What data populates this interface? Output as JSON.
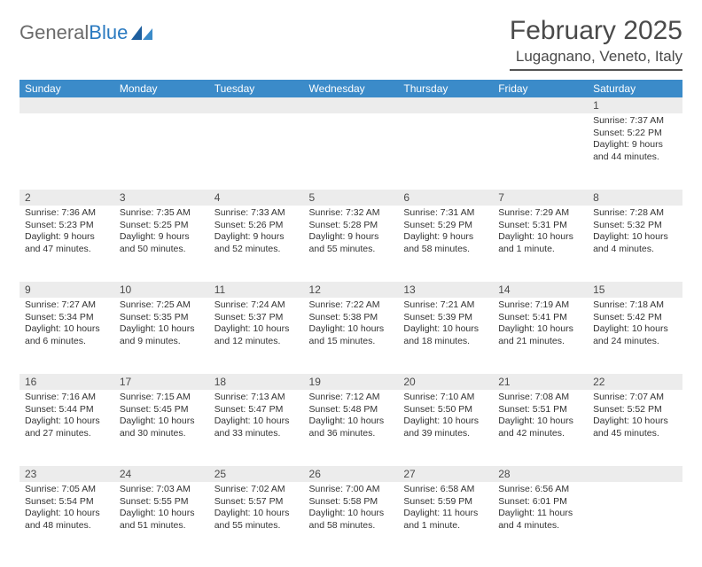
{
  "logo": {
    "word1": "General",
    "word2": "Blue"
  },
  "title": "February 2025",
  "location": "Lugagnano, Veneto, Italy",
  "colors": {
    "header_bg": "#3b8bc9",
    "header_text": "#ffffff",
    "daynum_bg": "#ececec",
    "text": "#333333",
    "logo_gray": "#6b6b6b",
    "logo_blue": "#2a7ac0"
  },
  "weekdays": [
    "Sunday",
    "Monday",
    "Tuesday",
    "Wednesday",
    "Thursday",
    "Friday",
    "Saturday"
  ],
  "weeks": [
    [
      {
        "n": "",
        "sunrise": "",
        "sunset": "",
        "daylight": ""
      },
      {
        "n": "",
        "sunrise": "",
        "sunset": "",
        "daylight": ""
      },
      {
        "n": "",
        "sunrise": "",
        "sunset": "",
        "daylight": ""
      },
      {
        "n": "",
        "sunrise": "",
        "sunset": "",
        "daylight": ""
      },
      {
        "n": "",
        "sunrise": "",
        "sunset": "",
        "daylight": ""
      },
      {
        "n": "",
        "sunrise": "",
        "sunset": "",
        "daylight": ""
      },
      {
        "n": "1",
        "sunrise": "Sunrise: 7:37 AM",
        "sunset": "Sunset: 5:22 PM",
        "daylight": "Daylight: 9 hours and 44 minutes."
      }
    ],
    [
      {
        "n": "2",
        "sunrise": "Sunrise: 7:36 AM",
        "sunset": "Sunset: 5:23 PM",
        "daylight": "Daylight: 9 hours and 47 minutes."
      },
      {
        "n": "3",
        "sunrise": "Sunrise: 7:35 AM",
        "sunset": "Sunset: 5:25 PM",
        "daylight": "Daylight: 9 hours and 50 minutes."
      },
      {
        "n": "4",
        "sunrise": "Sunrise: 7:33 AM",
        "sunset": "Sunset: 5:26 PM",
        "daylight": "Daylight: 9 hours and 52 minutes."
      },
      {
        "n": "5",
        "sunrise": "Sunrise: 7:32 AM",
        "sunset": "Sunset: 5:28 PM",
        "daylight": "Daylight: 9 hours and 55 minutes."
      },
      {
        "n": "6",
        "sunrise": "Sunrise: 7:31 AM",
        "sunset": "Sunset: 5:29 PM",
        "daylight": "Daylight: 9 hours and 58 minutes."
      },
      {
        "n": "7",
        "sunrise": "Sunrise: 7:29 AM",
        "sunset": "Sunset: 5:31 PM",
        "daylight": "Daylight: 10 hours and 1 minute."
      },
      {
        "n": "8",
        "sunrise": "Sunrise: 7:28 AM",
        "sunset": "Sunset: 5:32 PM",
        "daylight": "Daylight: 10 hours and 4 minutes."
      }
    ],
    [
      {
        "n": "9",
        "sunrise": "Sunrise: 7:27 AM",
        "sunset": "Sunset: 5:34 PM",
        "daylight": "Daylight: 10 hours and 6 minutes."
      },
      {
        "n": "10",
        "sunrise": "Sunrise: 7:25 AM",
        "sunset": "Sunset: 5:35 PM",
        "daylight": "Daylight: 10 hours and 9 minutes."
      },
      {
        "n": "11",
        "sunrise": "Sunrise: 7:24 AM",
        "sunset": "Sunset: 5:37 PM",
        "daylight": "Daylight: 10 hours and 12 minutes."
      },
      {
        "n": "12",
        "sunrise": "Sunrise: 7:22 AM",
        "sunset": "Sunset: 5:38 PM",
        "daylight": "Daylight: 10 hours and 15 minutes."
      },
      {
        "n": "13",
        "sunrise": "Sunrise: 7:21 AM",
        "sunset": "Sunset: 5:39 PM",
        "daylight": "Daylight: 10 hours and 18 minutes."
      },
      {
        "n": "14",
        "sunrise": "Sunrise: 7:19 AM",
        "sunset": "Sunset: 5:41 PM",
        "daylight": "Daylight: 10 hours and 21 minutes."
      },
      {
        "n": "15",
        "sunrise": "Sunrise: 7:18 AM",
        "sunset": "Sunset: 5:42 PM",
        "daylight": "Daylight: 10 hours and 24 minutes."
      }
    ],
    [
      {
        "n": "16",
        "sunrise": "Sunrise: 7:16 AM",
        "sunset": "Sunset: 5:44 PM",
        "daylight": "Daylight: 10 hours and 27 minutes."
      },
      {
        "n": "17",
        "sunrise": "Sunrise: 7:15 AM",
        "sunset": "Sunset: 5:45 PM",
        "daylight": "Daylight: 10 hours and 30 minutes."
      },
      {
        "n": "18",
        "sunrise": "Sunrise: 7:13 AM",
        "sunset": "Sunset: 5:47 PM",
        "daylight": "Daylight: 10 hours and 33 minutes."
      },
      {
        "n": "19",
        "sunrise": "Sunrise: 7:12 AM",
        "sunset": "Sunset: 5:48 PM",
        "daylight": "Daylight: 10 hours and 36 minutes."
      },
      {
        "n": "20",
        "sunrise": "Sunrise: 7:10 AM",
        "sunset": "Sunset: 5:50 PM",
        "daylight": "Daylight: 10 hours and 39 minutes."
      },
      {
        "n": "21",
        "sunrise": "Sunrise: 7:08 AM",
        "sunset": "Sunset: 5:51 PM",
        "daylight": "Daylight: 10 hours and 42 minutes."
      },
      {
        "n": "22",
        "sunrise": "Sunrise: 7:07 AM",
        "sunset": "Sunset: 5:52 PM",
        "daylight": "Daylight: 10 hours and 45 minutes."
      }
    ],
    [
      {
        "n": "23",
        "sunrise": "Sunrise: 7:05 AM",
        "sunset": "Sunset: 5:54 PM",
        "daylight": "Daylight: 10 hours and 48 minutes."
      },
      {
        "n": "24",
        "sunrise": "Sunrise: 7:03 AM",
        "sunset": "Sunset: 5:55 PM",
        "daylight": "Daylight: 10 hours and 51 minutes."
      },
      {
        "n": "25",
        "sunrise": "Sunrise: 7:02 AM",
        "sunset": "Sunset: 5:57 PM",
        "daylight": "Daylight: 10 hours and 55 minutes."
      },
      {
        "n": "26",
        "sunrise": "Sunrise: 7:00 AM",
        "sunset": "Sunset: 5:58 PM",
        "daylight": "Daylight: 10 hours and 58 minutes."
      },
      {
        "n": "27",
        "sunrise": "Sunrise: 6:58 AM",
        "sunset": "Sunset: 5:59 PM",
        "daylight": "Daylight: 11 hours and 1 minute."
      },
      {
        "n": "28",
        "sunrise": "Sunrise: 6:56 AM",
        "sunset": "Sunset: 6:01 PM",
        "daylight": "Daylight: 11 hours and 4 minutes."
      },
      {
        "n": "",
        "sunrise": "",
        "sunset": "",
        "daylight": ""
      }
    ]
  ]
}
